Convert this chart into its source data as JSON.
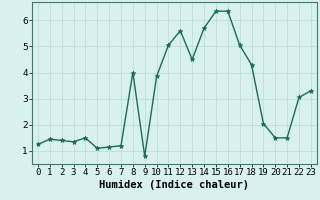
{
  "x": [
    0,
    1,
    2,
    3,
    4,
    5,
    6,
    7,
    8,
    9,
    10,
    11,
    12,
    13,
    14,
    15,
    16,
    17,
    18,
    19,
    20,
    21,
    22,
    23
  ],
  "y": [
    1.25,
    1.45,
    1.4,
    1.35,
    1.5,
    1.1,
    1.15,
    1.2,
    4.0,
    0.8,
    3.85,
    5.05,
    5.6,
    4.5,
    5.7,
    6.35,
    6.35,
    5.05,
    4.3,
    2.05,
    1.5,
    1.5,
    3.05,
    3.3
  ],
  "line_color": "#1a6b5a",
  "marker": "*",
  "marker_size": 3.5,
  "bg_color": "#d8f0ee",
  "grid_color": "#c0ddd9",
  "xlabel": "Humidex (Indice chaleur)",
  "xlabel_fontsize": 7.5,
  "xlabel_fontweight": "bold",
  "yticks": [
    1,
    2,
    3,
    4,
    5,
    6
  ],
  "xticks": [
    0,
    1,
    2,
    3,
    4,
    5,
    6,
    7,
    8,
    9,
    10,
    11,
    12,
    13,
    14,
    15,
    16,
    17,
    18,
    19,
    20,
    21,
    22,
    23
  ],
  "ylim": [
    0.5,
    6.7
  ],
  "xlim": [
    -0.5,
    23.5
  ],
  "tick_fontsize": 6.5,
  "linewidth": 1.0
}
